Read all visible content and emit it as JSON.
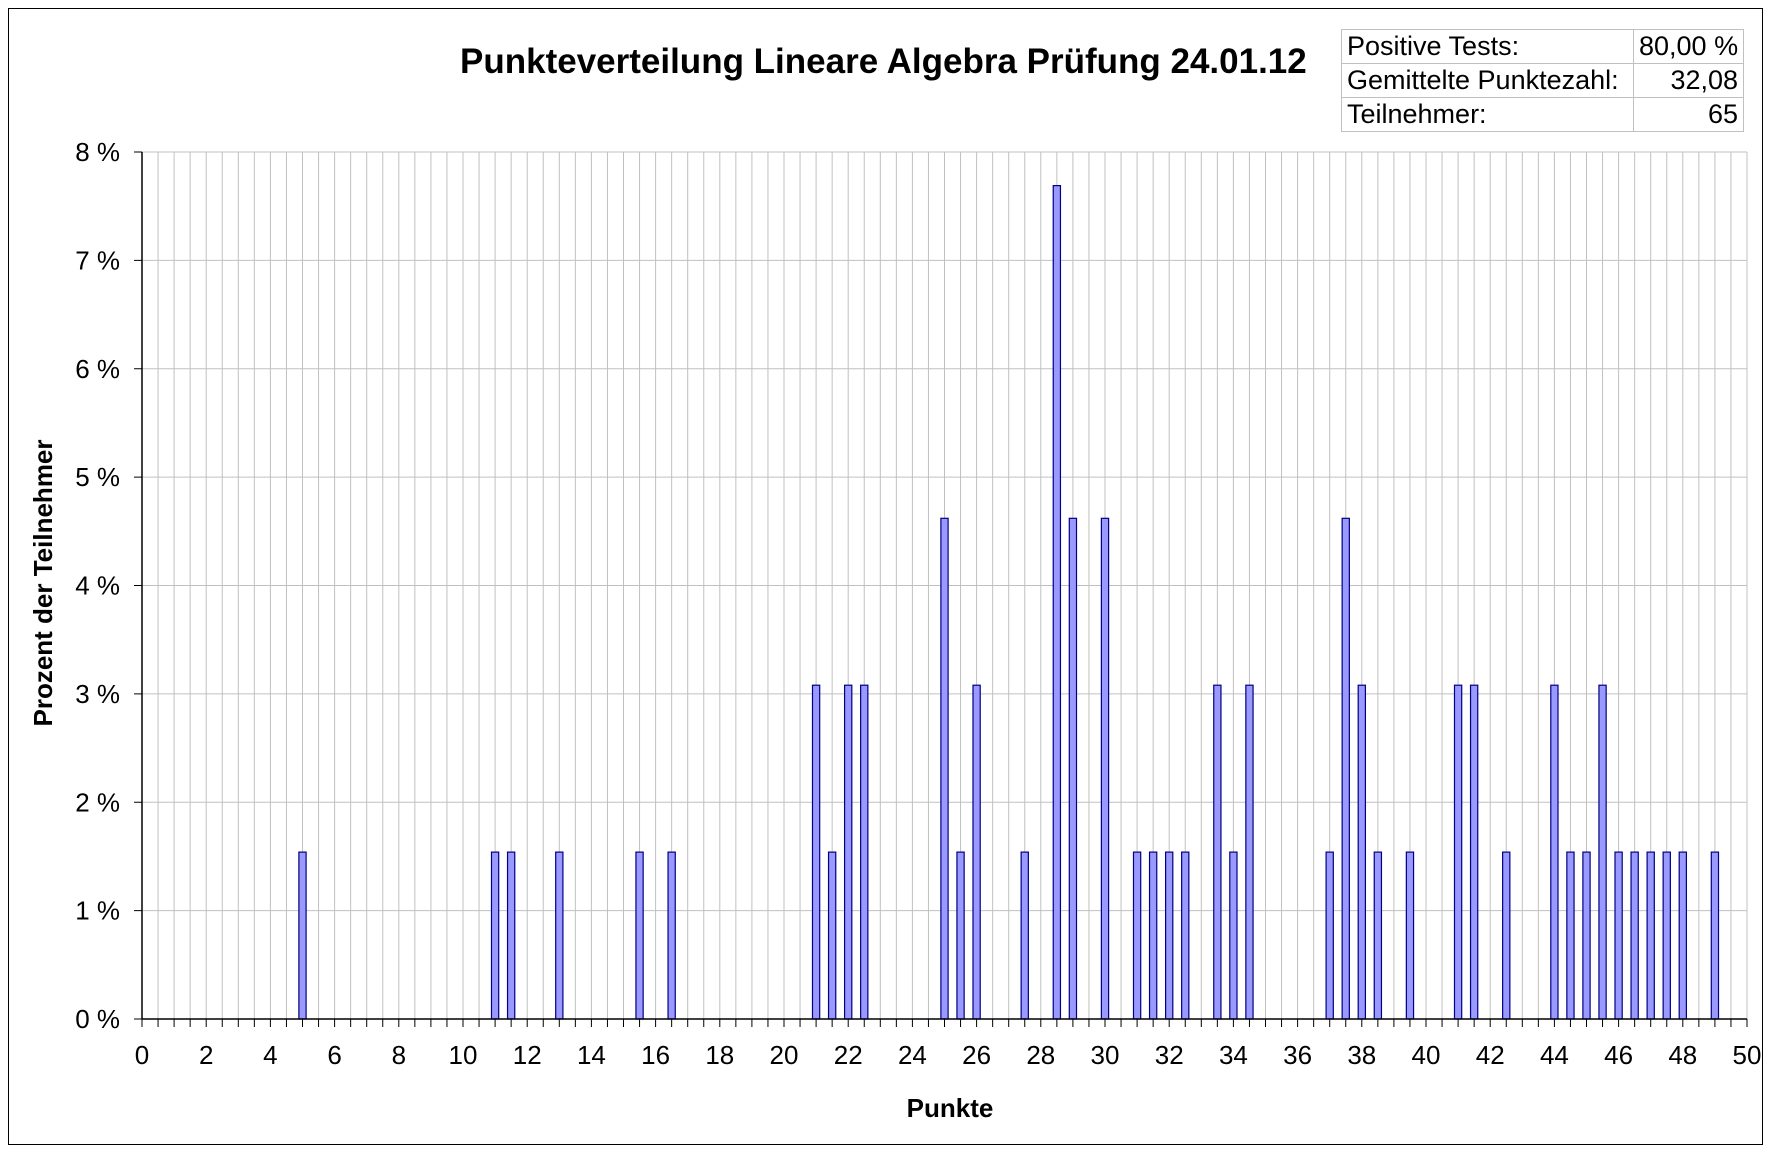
{
  "chart_data": {
    "type": "bar",
    "title": "Punkteverteilung Lineare Algebra Prüfung 24.01.12",
    "xlabel": "Punkte",
    "ylabel": "Prozent der Teilnehmer",
    "xlim": [
      0,
      50
    ],
    "ylim": [
      0,
      8
    ],
    "x_tick_labels": [
      "0",
      "2",
      "4",
      "6",
      "8",
      "10",
      "12",
      "14",
      "16",
      "18",
      "20",
      "22",
      "24",
      "26",
      "28",
      "30",
      "32",
      "34",
      "36",
      "38",
      "40",
      "42",
      "44",
      "46",
      "48",
      "50"
    ],
    "y_tick_labels": [
      "0 %",
      "1 %",
      "2 %",
      "3 %",
      "4 %",
      "5 %",
      "6 %",
      "7 %",
      "8 %"
    ],
    "grid": true,
    "legend": "none",
    "bar_color": "#9999ff",
    "series": [
      {
        "x": [
          5,
          11,
          11.5,
          13,
          15.5,
          16.5,
          21,
          21.5,
          22,
          22.5,
          25,
          25.5,
          26,
          27.5,
          28.5,
          29,
          30,
          31,
          31.5,
          32,
          32.5,
          33.5,
          34,
          34.5,
          37,
          37.5,
          38,
          38.5,
          39.5,
          41,
          41.5,
          42.5,
          44,
          44.5,
          45,
          45.5,
          46,
          46.5,
          47,
          47.5,
          48,
          49
        ],
        "values": [
          1.54,
          1.54,
          1.54,
          1.54,
          1.54,
          1.54,
          3.08,
          1.54,
          3.08,
          3.08,
          4.62,
          1.54,
          3.08,
          1.54,
          7.69,
          4.62,
          4.62,
          1.54,
          1.54,
          1.54,
          1.54,
          3.08,
          1.54,
          3.08,
          1.54,
          4.62,
          3.08,
          1.54,
          1.54,
          3.08,
          3.08,
          1.54,
          3.08,
          1.54,
          1.54,
          3.08,
          1.54,
          1.54,
          1.54,
          1.54,
          1.54,
          1.54
        ]
      }
    ]
  },
  "stats": [
    {
      "label": "Positive Tests:",
      "value": "80,00 %"
    },
    {
      "label": "Gemittelte Punktezahl:",
      "value": "32,08"
    },
    {
      "label": "Teilnehmer:",
      "value": "65"
    }
  ]
}
